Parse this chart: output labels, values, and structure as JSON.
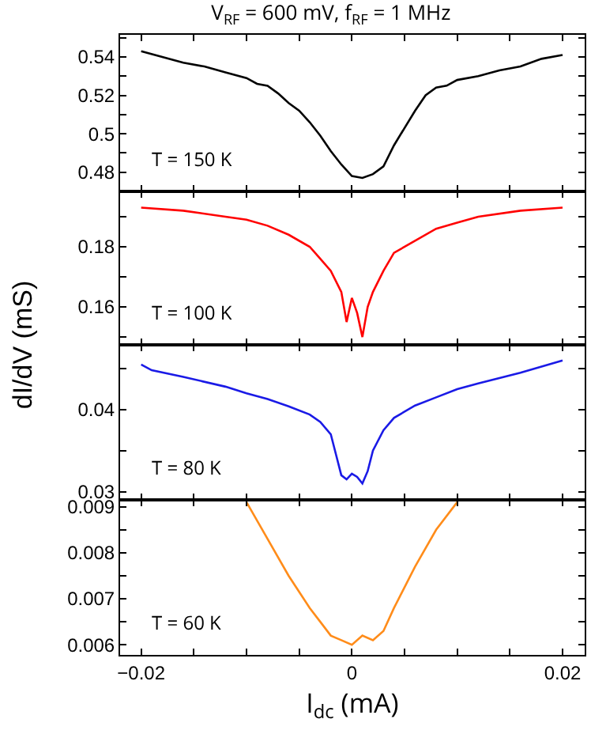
{
  "chart_data": [
    {
      "type": "line",
      "title": "V$_{RF}$ = 600 mV, f$_{RF}$ = 1 MHz",
      "annotations": [
        "T = 150 K"
      ],
      "tick_labels": "y",
      "x": [
        -0.02,
        -0.018,
        -0.016,
        -0.014,
        -0.012,
        -0.01,
        -0.009,
        -0.008,
        -0.007,
        -0.006,
        -0.005,
        -0.004,
        -0.003,
        -0.002,
        -0.001,
        0,
        0.001,
        0.002,
        0.003,
        0.004,
        0.005,
        0.006,
        0.007,
        0.008,
        0.009,
        0.01,
        0.012,
        0.014,
        0.016,
        0.018,
        0.02
      ],
      "series": [
        {
          "color": "#000000",
          "values": [
            0.543,
            0.54,
            0.537,
            0.535,
            0.532,
            0.529,
            0.526,
            0.525,
            0.521,
            0.516,
            0.512,
            0.506,
            0.499,
            0.491,
            0.484,
            0.478,
            0.477,
            0.479,
            0.483,
            0.494,
            0.503,
            0.512,
            0.52,
            0.524,
            0.525,
            0.528,
            0.53,
            0.533,
            0.535,
            0.539,
            0.541
          ]
        }
      ],
      "xlim": [
        -0.022,
        0.0221
      ],
      "ylim": [
        0.47,
        0.5515
      ],
      "xticks": [
        -0.02,
        -0.015,
        -0.01,
        -0.005,
        0,
        0.005,
        0.01,
        0.015,
        0.02
      ],
      "yticks": [
        {
          "value": 0.47,
          "label": null
        },
        0.48,
        {
          "value": 0.49,
          "label": null
        },
        0.5,
        {
          "value": 0.51,
          "label": null
        },
        0.52,
        {
          "value": 0.53,
          "label": null
        },
        0.54,
        {
          "value": 0.55,
          "label": null
        }
      ]
    },
    {
      "type": "line",
      "ylabel": "dI/dV (mS)",
      "annotations": [
        "T = 100 K"
      ],
      "tick_labels": "y",
      "x": [
        -0.02,
        -0.016,
        -0.012,
        -0.01,
        -0.008,
        -0.006,
        -0.004,
        -0.003,
        -0.002,
        -0.001,
        -0.0005,
        0,
        0.0005,
        0.001,
        0.0015,
        0.002,
        0.003,
        0.004,
        0.006,
        0.008,
        0.01,
        0.012,
        0.016,
        0.02
      ],
      "series": [
        {
          "color": "#ff0000",
          "values": [
            0.193,
            0.192,
            0.19,
            0.189,
            0.187,
            0.184,
            0.18,
            0.176,
            0.172,
            0.165,
            0.155,
            0.163,
            0.158,
            0.15,
            0.16,
            0.165,
            0.172,
            0.178,
            0.182,
            0.186,
            0.188,
            0.19,
            0.192,
            0.193
          ]
        }
      ],
      "xlim": [
        -0.022,
        0.0221
      ],
      "ylim": [
        0.1474,
        0.1984
      ],
      "xticks": [
        -0.02,
        -0.015,
        -0.01,
        -0.005,
        0,
        0.005,
        0.01,
        0.015,
        0.02
      ],
      "yticks": [
        {
          "value": 0.15,
          "label": null
        },
        0.16,
        {
          "value": 0.17,
          "label": null
        },
        0.18,
        {
          "value": 0.19,
          "label": null
        }
      ]
    },
    {
      "type": "line",
      "annotations": [
        "T = 80 K"
      ],
      "tick_labels": "y",
      "x": [
        -0.02,
        -0.019,
        -0.016,
        -0.012,
        -0.01,
        -0.008,
        -0.006,
        -0.004,
        -0.003,
        -0.002,
        -0.0015,
        -0.001,
        -0.0005,
        0,
        0.0005,
        0.001,
        0.0015,
        0.002,
        0.003,
        0.004,
        0.006,
        0.008,
        0.01,
        0.012,
        0.016,
        0.02
      ],
      "series": [
        {
          "color": "#1a1ae6",
          "values": [
            0.0455,
            0.0448,
            0.044,
            0.0428,
            0.042,
            0.0413,
            0.0404,
            0.0394,
            0.0385,
            0.037,
            0.0345,
            0.032,
            0.0315,
            0.0322,
            0.0318,
            0.031,
            0.0325,
            0.035,
            0.0375,
            0.039,
            0.0405,
            0.0415,
            0.0425,
            0.0432,
            0.0445,
            0.046
          ]
        }
      ],
      "xlim": [
        -0.022,
        0.0221
      ],
      "ylim": [
        0.029,
        0.0479
      ],
      "xticks": [
        -0.02,
        -0.015,
        -0.01,
        -0.005,
        0,
        0.005,
        0.01,
        0.015,
        0.02
      ],
      "yticks": [
        0.03,
        {
          "value": 0.035,
          "label": null
        },
        0.04,
        {
          "value": 0.045,
          "label": null
        }
      ]
    },
    {
      "type": "line",
      "xlabel": "I$_{dc}$ (mA)",
      "annotations": [
        "T = 60 K"
      ],
      "x": [
        -0.01,
        -0.008,
        -0.006,
        -0.004,
        -0.003,
        -0.002,
        -0.001,
        0,
        0.001,
        0.002,
        0.003,
        0.004,
        0.006,
        0.008,
        0.01
      ],
      "series": [
        {
          "color": "#ff8c1a",
          "values": [
            0.0091,
            0.0083,
            0.0075,
            0.0068,
            0.0065,
            0.0062,
            0.0061,
            0.006,
            0.0062,
            0.0061,
            0.0063,
            0.0068,
            0.0077,
            0.0085,
            0.0091
          ]
        }
      ],
      "xlim": [
        -0.022,
        0.0221
      ],
      "ylim": [
        0.00578,
        0.00915
      ],
      "xticks": [
        {
          "value": -0.02,
          "label": "−0.02"
        },
        {
          "value": -0.015,
          "label": null
        },
        {
          "value": -0.01,
          "label": null
        },
        {
          "value": -0.005,
          "label": null
        },
        0,
        {
          "value": 0.005,
          "label": null
        },
        {
          "value": 0.01,
          "label": null
        },
        {
          "value": 0.015,
          "label": null
        },
        0.02
      ],
      "yticks": [
        0.006,
        {
          "value": 0.0065,
          "label": null
        },
        0.007,
        {
          "value": 0.0075,
          "label": null
        },
        0.008,
        {
          "value": 0.0085,
          "label": null
        },
        0.009
      ]
    }
  ]
}
